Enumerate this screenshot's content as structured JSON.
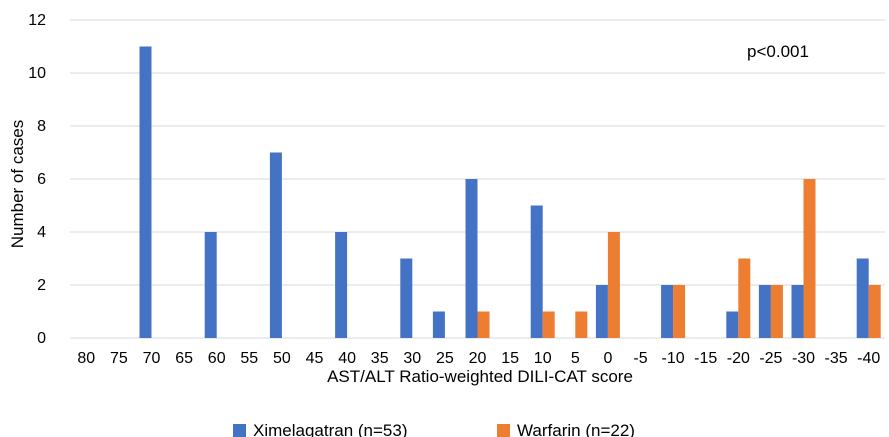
{
  "chart_data": {
    "type": "bar",
    "title": "",
    "xlabel": "AST/ALT Ratio-weighted DILI-CAT score",
    "ylabel": "Number of cases",
    "annotation": "p<0.001",
    "ylim": [
      0,
      12
    ],
    "yticks": [
      0,
      2,
      4,
      6,
      8,
      10,
      12
    ],
    "grid": true,
    "legend": "bottom",
    "categories": [
      "80",
      "75",
      "70",
      "65",
      "60",
      "55",
      "50",
      "45",
      "40",
      "35",
      "30",
      "25",
      "20",
      "15",
      "10",
      "5",
      "0",
      "-5",
      "-10",
      "-15",
      "-20",
      "-25",
      "-30",
      "-35",
      "-40"
    ],
    "series": [
      {
        "name": "Ximelagatran (n=53)",
        "color": "#4472c4",
        "values": [
          0,
          0,
          11,
          0,
          4,
          0,
          7,
          0,
          4,
          0,
          3,
          1,
          6,
          0,
          5,
          0,
          2,
          0,
          2,
          0,
          1,
          2,
          2,
          0,
          3
        ]
      },
      {
        "name": "Warfarin (n=22)",
        "color": "#ed7d31",
        "values": [
          0,
          0,
          0,
          0,
          0,
          0,
          0,
          0,
          0,
          0,
          0,
          0,
          1,
          0,
          1,
          1,
          4,
          0,
          2,
          0,
          3,
          2,
          6,
          0,
          2
        ]
      }
    ]
  }
}
